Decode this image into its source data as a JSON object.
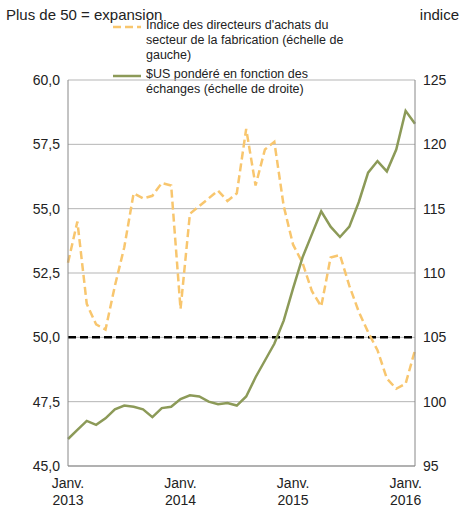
{
  "chart_data": {
    "type": "line",
    "ylabel": "Plus de 50 = expansion",
    "y2label": "indice",
    "categories": [
      "Janv. 2013",
      null,
      null,
      null,
      null,
      null,
      null,
      null,
      null,
      null,
      null,
      null,
      "Janv. 2014",
      null,
      null,
      null,
      null,
      null,
      null,
      null,
      null,
      null,
      null,
      null,
      "Janv. 2015",
      null,
      null,
      null,
      null,
      null,
      null,
      null,
      null,
      null,
      null,
      null,
      "Janv. 2016",
      null
    ],
    "series": [
      {
        "name": "Indice des directeurs d'achats du secteur de la fabrication (échelle de gauche)",
        "color": "#F8C66E",
        "line_style": "dashed",
        "axis": "y",
        "values": [
          52.9,
          54.5,
          51.3,
          50.5,
          50.3,
          52.0,
          53.5,
          55.6,
          55.4,
          55.5,
          56.0,
          55.9,
          51.1,
          54.8,
          55.1,
          55.4,
          55.7,
          55.3,
          55.6,
          58.1,
          55.9,
          57.3,
          57.6,
          55.1,
          53.6,
          52.9,
          51.8,
          51.2,
          53.1,
          53.2,
          52.0,
          51.0,
          50.2,
          49.5,
          48.4,
          48.0,
          48.2,
          49.5
        ]
      },
      {
        "name": "$US pondéré en fonction des échanges (échelle de droite)",
        "color": "#8C9A58",
        "line_style": "solid",
        "axis": "y2",
        "values": [
          97.1,
          97.8,
          98.5,
          98.2,
          98.7,
          99.4,
          99.7,
          99.6,
          99.4,
          98.8,
          99.5,
          99.6,
          100.2,
          100.5,
          100.4,
          100.0,
          99.8,
          99.9,
          99.7,
          100.4,
          101.9,
          103.2,
          104.5,
          106.3,
          108.8,
          111.2,
          113.0,
          114.8,
          113.6,
          112.8,
          113.6,
          115.5,
          117.8,
          118.7,
          117.9,
          119.6,
          122.6,
          121.6
        ]
      }
    ],
    "ylim": [
      45,
      60
    ],
    "yticks": [
      {
        "value": 45,
        "label": "45,0"
      },
      {
        "value": 47.5,
        "label": "47,5"
      },
      {
        "value": 50,
        "label": "50,0"
      },
      {
        "value": 52.5,
        "label": "52,5"
      },
      {
        "value": 55,
        "label": "55,0"
      },
      {
        "value": 57.5,
        "label": "57,5"
      },
      {
        "value": 60,
        "label": "60,0"
      }
    ],
    "y2lim": [
      95,
      125
    ],
    "y2ticks": [
      95,
      100,
      105,
      110,
      115,
      120,
      125
    ],
    "grid": true,
    "legend": "upper left",
    "hlines": [
      {
        "value": 50,
        "color": "#000000",
        "line_style": "dashed"
      }
    ]
  }
}
